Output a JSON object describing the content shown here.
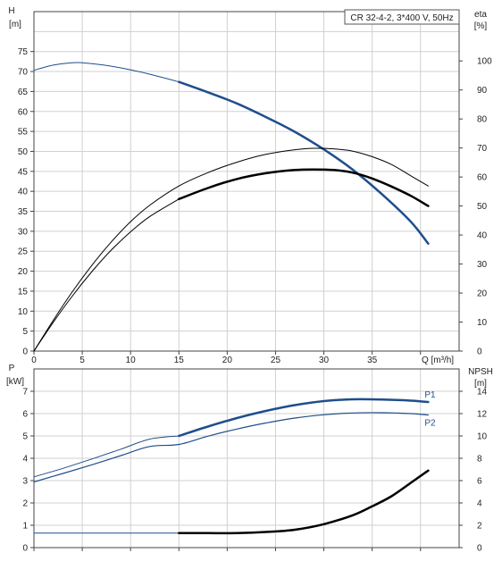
{
  "chart_data": [
    {
      "type": "line",
      "title": "CR 32-4-2, 3*400 V, 50Hz",
      "xlabel": "Q [m³/h]",
      "ylabel_left_top": "H",
      "ylabel_left_bottom": "[m]",
      "ylabel_right_top": "eta",
      "ylabel_right_bottom": "[%]",
      "xlim": [
        0,
        44
      ],
      "ylim_left": [
        0,
        85
      ],
      "ylim_right": [
        0,
        117
      ],
      "x_ticks": [
        "0",
        "5",
        "10",
        "15",
        "20",
        "25",
        "30",
        "35"
      ],
      "y_ticks_left": [
        "0",
        "5",
        "10",
        "15",
        "20",
        "25",
        "30",
        "35",
        "40",
        "45",
        "50",
        "55",
        "60",
        "65",
        "70",
        "75"
      ],
      "y_ticks_right": [
        "0",
        "10",
        "20",
        "30",
        "40",
        "50",
        "60",
        "70",
        "80",
        "90",
        "100"
      ],
      "grid": true,
      "series": [
        {
          "axis": "left",
          "color": "#1f4e8c",
          "width": 1,
          "x": [
            0,
            2,
            4,
            5,
            7,
            9,
            11,
            13,
            15
          ],
          "y": [
            70.3,
            71.6,
            72.2,
            72.2,
            71.7,
            70.9,
            69.9,
            68.7,
            67.4
          ]
        },
        {
          "axis": "left",
          "color": "#1f4e8c",
          "width": 2.5,
          "x": [
            15,
            18,
            21,
            24,
            27,
            30,
            33,
            36,
            39,
            40.8
          ],
          "y": [
            67.4,
            64.8,
            62.0,
            58.6,
            54.9,
            50.5,
            45.4,
            39.3,
            32.4,
            26.9
          ]
        },
        {
          "axis": "right",
          "color": "#000000",
          "width": 1,
          "x": [
            0,
            2,
            4,
            6,
            8,
            10,
            12,
            15,
            18,
            21,
            24,
            27,
            29,
            31,
            33,
            35,
            37,
            39,
            40.8
          ],
          "y": [
            0,
            10.6,
            20.6,
            29.6,
            37.6,
            44.6,
            50.3,
            56.9,
            61.5,
            65.1,
            67.8,
            69.4,
            69.9,
            69.7,
            68.9,
            67.0,
            64.3,
            60.4,
            56.9
          ]
        },
        {
          "axis": "right",
          "color": "#000000",
          "width": 1,
          "x": [
            0,
            2,
            4,
            6,
            8,
            10,
            12,
            15
          ],
          "y": [
            0,
            9.9,
            19.1,
            27.4,
            34.8,
            41.1,
            46.4,
            52.4
          ]
        },
        {
          "axis": "right",
          "color": "#000000",
          "width": 2.5,
          "x": [
            15,
            18,
            21,
            24,
            27,
            29,
            31,
            33,
            35,
            37,
            39,
            40.8
          ],
          "y": [
            52.4,
            56.2,
            59.3,
            61.3,
            62.4,
            62.6,
            62.4,
            61.5,
            59.5,
            56.7,
            53.5,
            50.0
          ]
        }
      ]
    },
    {
      "type": "line",
      "xlabel": "",
      "ylabel_left_top": "P",
      "ylabel_left_bottom": "[kW]",
      "ylabel_right_top": "NPSH",
      "ylabel_right_bottom": "[m]",
      "xlim": [
        0,
        44
      ],
      "ylim_left": [
        0,
        8
      ],
      "ylim_right": [
        0,
        16
      ],
      "y_ticks_left": [
        "0",
        "1",
        "2",
        "3",
        "4",
        "5",
        "6",
        "7"
      ],
      "y_ticks_right": [
        "0",
        "2",
        "4",
        "6",
        "8",
        "10",
        "12",
        "14"
      ],
      "grid": true,
      "series": [
        {
          "axis": "left",
          "color": "#1f4e8c",
          "width": 1,
          "label": "",
          "x": [
            0,
            3,
            6,
            9,
            12,
            15
          ],
          "y": [
            3.17,
            3.55,
            3.97,
            4.41,
            4.86,
            5.0
          ]
        },
        {
          "axis": "left",
          "color": "#1f4e8c",
          "width": 2.5,
          "label": "P1",
          "x": [
            15,
            18,
            21,
            24,
            27,
            30,
            33,
            36,
            39,
            40.8
          ],
          "y": [
            5.0,
            5.42,
            5.8,
            6.12,
            6.38,
            6.56,
            6.64,
            6.63,
            6.58,
            6.52
          ]
        },
        {
          "axis": "left",
          "color": "#1f4e8c",
          "width": 1.2,
          "label": "P2",
          "x": [
            0,
            3,
            6,
            9,
            12,
            15,
            18,
            21,
            24,
            27,
            30,
            33,
            36,
            39,
            40.8
          ],
          "y": [
            2.94,
            3.32,
            3.71,
            4.12,
            4.53,
            4.62,
            4.99,
            5.31,
            5.58,
            5.8,
            5.95,
            6.03,
            6.04,
            6.0,
            5.94
          ]
        },
        {
          "axis": "right",
          "color": "#1f4e8c",
          "width": 1,
          "label": "",
          "x": [
            0,
            15
          ],
          "y": [
            1.3,
            1.3
          ]
        },
        {
          "axis": "right",
          "color": "#000000",
          "width": 2.5,
          "label": "",
          "x": [
            15,
            18,
            21,
            24,
            27,
            30,
            33,
            35,
            37,
            39,
            40.8
          ],
          "y": [
            1.3,
            1.3,
            1.3,
            1.4,
            1.6,
            2.1,
            2.9,
            3.7,
            4.6,
            5.8,
            6.9
          ]
        }
      ]
    }
  ]
}
